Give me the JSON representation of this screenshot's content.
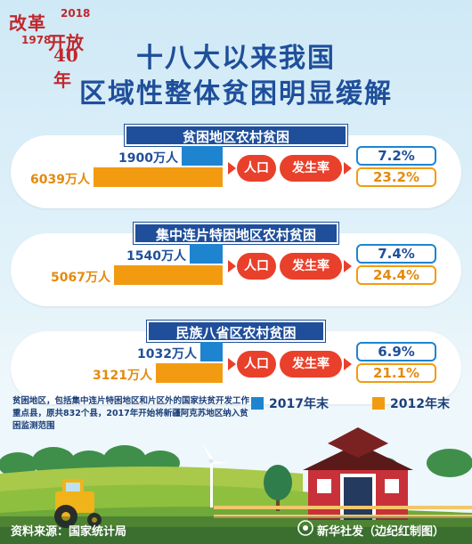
{
  "logo": {
    "line1": "改革",
    "line2": "开放",
    "year_start": "1978",
    "year_end": "2018",
    "anniversary": "40年"
  },
  "title": {
    "line1": "十八大以来我国",
    "line2": "区域性整体贫困明显缓解"
  },
  "labels": {
    "population": "人口",
    "incidence": "发生率"
  },
  "chart_data": [
    {
      "type": "bar",
      "title": "贫困地区农村贫困",
      "categories": [
        "2017年末",
        "2012年末"
      ],
      "series": [
        {
          "name": "人口",
          "values": [
            1900,
            6039
          ],
          "display": [
            "1900万人",
            "6039万人"
          ]
        },
        {
          "name": "发生率",
          "values": [
            7.2,
            23.2
          ],
          "display": [
            "7.2%",
            "23.2%"
          ]
        }
      ]
    },
    {
      "type": "bar",
      "title": "集中连片特困地区农村贫困",
      "categories": [
        "2017年末",
        "2012年末"
      ],
      "series": [
        {
          "name": "人口",
          "values": [
            1540,
            5067
          ],
          "display": [
            "1540万人",
            "5067万人"
          ]
        },
        {
          "name": "发生率",
          "values": [
            7.4,
            24.4
          ],
          "display": [
            "7.4%",
            "24.4%"
          ]
        }
      ]
    },
    {
      "type": "bar",
      "title": "民族八省区农村贫困",
      "categories": [
        "2017年末",
        "2012年末"
      ],
      "series": [
        {
          "name": "人口",
          "values": [
            1032,
            3121
          ],
          "display": [
            "1032万人",
            "3121万人"
          ]
        },
        {
          "name": "发生率",
          "values": [
            6.9,
            21.1
          ],
          "display": [
            "6.9%",
            "21.1%"
          ]
        }
      ]
    }
  ],
  "legend": {
    "items": [
      {
        "label": "2017年末",
        "color": "#1e84cf"
      },
      {
        "label": "2012年末",
        "color": "#f29b11"
      }
    ]
  },
  "note": "贫困地区，包括集中连片特困地区和片区外的国家扶贫开发工作重点县，原共832个县，2017年开始将新疆阿克苏地区纳入贫困监测范围",
  "footer": {
    "source": "资料来源：国家统计局",
    "credit": "新华社发（边纪红制图）"
  }
}
